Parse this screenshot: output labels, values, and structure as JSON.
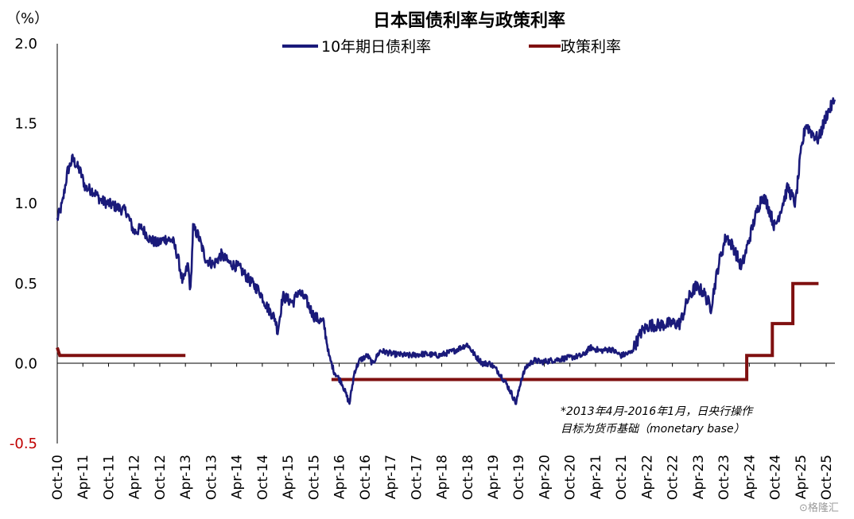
{
  "chart_data": {
    "type": "line",
    "title": "日本国债利率与政策利率",
    "unit_label": "（%）",
    "ylim": [
      -0.5,
      2.0
    ],
    "yticks": [
      "2.0",
      "1.5",
      "1.0",
      "0.5",
      "0.0",
      "-0.5"
    ],
    "ytick_values": [
      2.0,
      1.5,
      1.0,
      0.5,
      0.0,
      -0.5
    ],
    "negative_tick_color": "#c00000",
    "x_range": [
      2010.75,
      2025.92
    ],
    "xticks": [
      "Oct-10",
      "Apr-11",
      "Oct-11",
      "Apr-12",
      "Oct-12",
      "Apr-13",
      "Oct-13",
      "Apr-14",
      "Oct-14",
      "Apr-15",
      "Oct-15",
      "Apr-16",
      "Oct-16",
      "Apr-17",
      "Oct-17",
      "Apr-18",
      "Oct-18",
      "Apr-19",
      "Oct-19",
      "Apr-20",
      "Oct-20",
      "Apr-21",
      "Oct-21",
      "Apr-22",
      "Oct-22",
      "Apr-23",
      "Oct-23",
      "Apr-24",
      "Oct-24",
      "Apr-25",
      "Oct-25"
    ],
    "xtick_values": [
      2010.75,
      2011.25,
      2011.75,
      2012.25,
      2012.75,
      2013.25,
      2013.75,
      2014.25,
      2014.75,
      2015.25,
      2015.75,
      2016.25,
      2016.75,
      2017.25,
      2017.75,
      2018.25,
      2018.75,
      2019.25,
      2019.75,
      2020.25,
      2020.75,
      2021.25,
      2021.75,
      2022.25,
      2022.75,
      2023.25,
      2023.75,
      2024.25,
      2024.75,
      2025.25,
      2025.75
    ],
    "legend_position": "top-center",
    "series": [
      {
        "name": "10年期日债利率",
        "color": "#1a1a7a",
        "style": "noisy-line",
        "x": [
          2010.75,
          2010.85,
          2010.95,
          2011.05,
          2011.2,
          2011.3,
          2011.45,
          2011.6,
          2011.75,
          2011.9,
          2012.1,
          2012.25,
          2012.4,
          2012.55,
          2012.7,
          2012.85,
          2013.0,
          2013.1,
          2013.2,
          2013.3,
          2013.35,
          2013.4,
          2013.5,
          2013.65,
          2013.8,
          2013.95,
          2014.1,
          2014.3,
          2014.5,
          2014.7,
          2014.85,
          2015.0,
          2015.05,
          2015.15,
          2015.35,
          2015.45,
          2015.6,
          2015.75,
          2015.95,
          2016.05,
          2016.15,
          2016.3,
          2016.45,
          2016.55,
          2016.65,
          2016.8,
          2016.9,
          2017.05,
          2017.3,
          2017.6,
          2017.9,
          2018.2,
          2018.5,
          2018.75,
          2018.9,
          2019.05,
          2019.2,
          2019.35,
          2019.5,
          2019.6,
          2019.7,
          2019.8,
          2019.9,
          2020.05,
          2020.2,
          2020.4,
          2020.6,
          2020.8,
          2021.0,
          2021.15,
          2021.35,
          2021.55,
          2021.75,
          2021.95,
          2022.15,
          2022.3,
          2022.5,
          2022.7,
          2022.9,
          2023.05,
          2023.2,
          2023.35,
          2023.5,
          2023.65,
          2023.8,
          2023.95,
          2024.1,
          2024.2,
          2024.35,
          2024.5,
          2024.6,
          2024.75,
          2024.85,
          2025.0,
          2025.15,
          2025.25,
          2025.35,
          2025.45,
          2025.6,
          2025.75,
          2025.92
        ],
        "y": [
          0.9,
          1.0,
          1.2,
          1.28,
          1.2,
          1.1,
          1.08,
          1.02,
          1.0,
          0.98,
          0.95,
          0.82,
          0.85,
          0.78,
          0.75,
          0.78,
          0.77,
          0.67,
          0.5,
          0.62,
          0.45,
          0.85,
          0.8,
          0.65,
          0.62,
          0.68,
          0.63,
          0.6,
          0.52,
          0.45,
          0.35,
          0.28,
          0.2,
          0.42,
          0.38,
          0.45,
          0.4,
          0.3,
          0.25,
          0.05,
          -0.05,
          -0.12,
          -0.25,
          -0.05,
          0.02,
          0.05,
          0.0,
          0.08,
          0.06,
          0.05,
          0.06,
          0.05,
          0.08,
          0.12,
          0.05,
          0.0,
          0.0,
          -0.05,
          -0.12,
          -0.18,
          -0.25,
          -0.1,
          -0.02,
          0.02,
          0.01,
          0.02,
          0.03,
          0.04,
          0.05,
          0.1,
          0.08,
          0.09,
          0.05,
          0.07,
          0.2,
          0.24,
          0.24,
          0.25,
          0.25,
          0.4,
          0.48,
          0.45,
          0.35,
          0.62,
          0.8,
          0.72,
          0.6,
          0.72,
          0.9,
          1.05,
          1.0,
          0.85,
          0.95,
          1.1,
          1.0,
          1.3,
          1.5,
          1.45,
          1.4,
          1.55,
          1.65
        ]
      },
      {
        "name": "政策利率",
        "color": "#7f1010",
        "style": "step",
        "segments": [
          {
            "x": [
              2010.75,
              2010.8,
              2011.0,
              2013.25
            ],
            "y": [
              0.1,
              0.05,
              0.05,
              0.05
            ]
          },
          {
            "x": [
              2016.1,
              2024.2
            ],
            "y": [
              -0.1,
              -0.1
            ]
          },
          {
            "x": [
              2024.2,
              2024.7
            ],
            "y": [
              0.05,
              0.05
            ]
          },
          {
            "x": [
              2024.7,
              2025.1
            ],
            "y": [
              0.25,
              0.25
            ]
          },
          {
            "x": [
              2025.1,
              2025.6
            ],
            "y": [
              0.5,
              0.5
            ]
          }
        ]
      }
    ],
    "annotation": [
      "*2013年4月-2016年1月，日央行操作",
      "目标为货币基础（monetary base）"
    ]
  },
  "watermark": "⊙格隆汇"
}
